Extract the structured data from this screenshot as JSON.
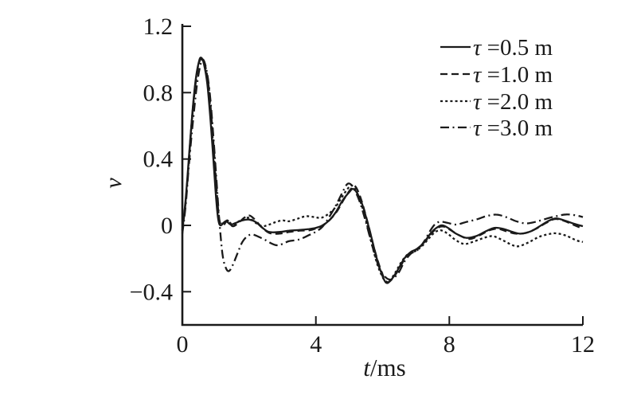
{
  "figure": {
    "background": "#ffffff",
    "line_color": "#1a1a1a"
  },
  "labels": {
    "x_var": "t",
    "x_unit": "/ms",
    "y_var": "v"
  },
  "chart_data": {
    "type": "line",
    "title": "",
    "xlabel": "t/ms",
    "ylabel": "v",
    "xlim": [
      0,
      12
    ],
    "ylim": [
      -0.6,
      1.22
    ],
    "grid": false,
    "legend_position": "top-right",
    "xticks": [
      {
        "v": 0,
        "label": "0"
      },
      {
        "v": 4,
        "label": "4"
      },
      {
        "v": 8,
        "label": "8"
      },
      {
        "v": 12,
        "label": "12"
      }
    ],
    "yticks": [
      {
        "v": -0.4,
        "label": "−0.4"
      },
      {
        "v": 0,
        "label": "0"
      },
      {
        "v": 0.4,
        "label": "0.4"
      },
      {
        "v": 0.8,
        "label": "0.8"
      },
      {
        "v": 1.2,
        "label": "1.2"
      }
    ],
    "series": [
      {
        "name": "tau-0.5m",
        "symbol": "τ",
        "label_rest": " =0.5 m",
        "style": "solid",
        "points": [
          [
            0,
            -0.03
          ],
          [
            0.1,
            0.16
          ],
          [
            0.2,
            0.42
          ],
          [
            0.3,
            0.68
          ],
          [
            0.4,
            0.88
          ],
          [
            0.5,
            0.99
          ],
          [
            0.57,
            1.01
          ],
          [
            0.65,
            0.97
          ],
          [
            0.75,
            0.85
          ],
          [
            0.85,
            0.62
          ],
          [
            0.95,
            0.34
          ],
          [
            1.02,
            0.14
          ],
          [
            1.08,
            0.03
          ],
          [
            1.15,
            0
          ],
          [
            1.3,
            0.025
          ],
          [
            1.45,
            0.005
          ],
          [
            1.6,
            0.015
          ],
          [
            1.8,
            0.03
          ],
          [
            2,
            0.035
          ],
          [
            2.2,
            0.02
          ],
          [
            2.4,
            -0.015
          ],
          [
            2.6,
            -0.04
          ],
          [
            2.9,
            -0.04
          ],
          [
            3.2,
            -0.032
          ],
          [
            3.5,
            -0.028
          ],
          [
            3.8,
            -0.022
          ],
          [
            4,
            -0.015
          ],
          [
            4.2,
            0
          ],
          [
            4.4,
            0.03
          ],
          [
            4.6,
            0.08
          ],
          [
            4.8,
            0.15
          ],
          [
            5,
            0.2
          ],
          [
            5.12,
            0.22
          ],
          [
            5.25,
            0.19
          ],
          [
            5.4,
            0.12
          ],
          [
            5.6,
            -0.02
          ],
          [
            5.8,
            -0.18
          ],
          [
            5.95,
            -0.28
          ],
          [
            6.1,
            -0.345
          ],
          [
            6.25,
            -0.33
          ],
          [
            6.45,
            -0.27
          ],
          [
            6.65,
            -0.2
          ],
          [
            6.85,
            -0.16
          ],
          [
            7.05,
            -0.14
          ],
          [
            7.25,
            -0.1
          ],
          [
            7.45,
            -0.045
          ],
          [
            7.65,
            -0.01
          ],
          [
            7.8,
            0
          ],
          [
            8,
            -0.02
          ],
          [
            8.2,
            -0.05
          ],
          [
            8.5,
            -0.075
          ],
          [
            8.8,
            -0.065
          ],
          [
            9.1,
            -0.035
          ],
          [
            9.35,
            -0.015
          ],
          [
            9.6,
            -0.02
          ],
          [
            9.9,
            -0.04
          ],
          [
            10.15,
            -0.05
          ],
          [
            10.45,
            -0.035
          ],
          [
            10.75,
            0
          ],
          [
            11,
            0.03
          ],
          [
            11.2,
            0.042
          ],
          [
            11.45,
            0.03
          ],
          [
            11.7,
            0.012
          ],
          [
            12,
            -0.005
          ]
        ]
      },
      {
        "name": "tau-1.0m",
        "symbol": "τ",
        "label_rest": " =1.0 m",
        "style": "dashed",
        "points": [
          [
            0,
            -0.03
          ],
          [
            0.1,
            0.14
          ],
          [
            0.2,
            0.4
          ],
          [
            0.3,
            0.66
          ],
          [
            0.4,
            0.86
          ],
          [
            0.5,
            0.98
          ],
          [
            0.6,
            1.005
          ],
          [
            0.7,
            0.95
          ],
          [
            0.8,
            0.82
          ],
          [
            0.9,
            0.58
          ],
          [
            1,
            0.3
          ],
          [
            1.07,
            0.1
          ],
          [
            1.14,
            0.01
          ],
          [
            1.25,
            0.005
          ],
          [
            1.35,
            0.03
          ],
          [
            1.5,
            -0.005
          ],
          [
            1.65,
            0.01
          ],
          [
            1.85,
            0.045
          ],
          [
            2,
            0.06
          ],
          [
            2.15,
            0.04
          ],
          [
            2.35,
            -0.005
          ],
          [
            2.6,
            -0.045
          ],
          [
            2.9,
            -0.05
          ],
          [
            3.2,
            -0.04
          ],
          [
            3.5,
            -0.032
          ],
          [
            3.8,
            -0.03
          ],
          [
            4.05,
            -0.015
          ],
          [
            4.25,
            0.005
          ],
          [
            4.45,
            0.04
          ],
          [
            4.65,
            0.09
          ],
          [
            4.85,
            0.16
          ],
          [
            5.05,
            0.22
          ],
          [
            5.18,
            0.235
          ],
          [
            5.35,
            0.16
          ],
          [
            5.55,
            0.02
          ],
          [
            5.75,
            -0.14
          ],
          [
            5.95,
            -0.27
          ],
          [
            6.12,
            -0.34
          ],
          [
            6.3,
            -0.32
          ],
          [
            6.5,
            -0.26
          ],
          [
            6.7,
            -0.19
          ],
          [
            6.9,
            -0.16
          ],
          [
            7.1,
            -0.13
          ],
          [
            7.3,
            -0.09
          ],
          [
            7.5,
            -0.04
          ],
          [
            7.7,
            -0.01
          ],
          [
            7.85,
            -0.008
          ],
          [
            8.05,
            -0.03
          ],
          [
            8.3,
            -0.06
          ],
          [
            8.6,
            -0.082
          ],
          [
            8.9,
            -0.06
          ],
          [
            9.2,
            -0.03
          ],
          [
            9.45,
            -0.02
          ],
          [
            9.7,
            -0.035
          ],
          [
            10,
            -0.05
          ],
          [
            10.3,
            -0.045
          ],
          [
            10.6,
            -0.02
          ],
          [
            10.9,
            0.015
          ],
          [
            11.15,
            0.038
          ],
          [
            11.4,
            0.03
          ],
          [
            11.7,
            0.005
          ],
          [
            12,
            -0.02
          ]
        ]
      },
      {
        "name": "tau-2.0m",
        "symbol": "τ",
        "label_rest": " =2.0 m",
        "style": "dotted",
        "points": [
          [
            0,
            -0.03
          ],
          [
            0.1,
            0.15
          ],
          [
            0.2,
            0.41
          ],
          [
            0.3,
            0.67
          ],
          [
            0.4,
            0.87
          ],
          [
            0.5,
            0.985
          ],
          [
            0.58,
            1
          ],
          [
            0.68,
            0.955
          ],
          [
            0.78,
            0.83
          ],
          [
            0.88,
            0.6
          ],
          [
            0.98,
            0.32
          ],
          [
            1.05,
            0.12
          ],
          [
            1.12,
            0.02
          ],
          [
            1.25,
            0.015
          ],
          [
            1.35,
            0.03
          ],
          [
            1.5,
            0.005
          ],
          [
            1.65,
            0.02
          ],
          [
            1.85,
            0.04
          ],
          [
            2,
            0.045
          ],
          [
            2.2,
            0.015
          ],
          [
            2.4,
            -0.005
          ],
          [
            2.6,
            0.005
          ],
          [
            2.8,
            0.02
          ],
          [
            3,
            0.03
          ],
          [
            3.2,
            0.025
          ],
          [
            3.45,
            0.04
          ],
          [
            3.7,
            0.055
          ],
          [
            3.95,
            0.05
          ],
          [
            4.15,
            0.045
          ],
          [
            4.35,
            0.065
          ],
          [
            4.55,
            0.1
          ],
          [
            4.75,
            0.16
          ],
          [
            4.95,
            0.22
          ],
          [
            5.08,
            0.24
          ],
          [
            5.25,
            0.19
          ],
          [
            5.45,
            0.07
          ],
          [
            5.65,
            -0.09
          ],
          [
            5.85,
            -0.24
          ],
          [
            6.05,
            -0.33
          ],
          [
            6.18,
            -0.34
          ],
          [
            6.38,
            -0.285
          ],
          [
            6.58,
            -0.215
          ],
          [
            6.78,
            -0.17
          ],
          [
            6.98,
            -0.155
          ],
          [
            7.18,
            -0.125
          ],
          [
            7.38,
            -0.08
          ],
          [
            7.58,
            -0.04
          ],
          [
            7.75,
            -0.03
          ],
          [
            7.95,
            -0.05
          ],
          [
            8.2,
            -0.09
          ],
          [
            8.45,
            -0.112
          ],
          [
            8.7,
            -0.1
          ],
          [
            9,
            -0.078
          ],
          [
            9.3,
            -0.065
          ],
          [
            9.6,
            -0.09
          ],
          [
            9.9,
            -0.12
          ],
          [
            10.1,
            -0.125
          ],
          [
            10.4,
            -0.1
          ],
          [
            10.7,
            -0.068
          ],
          [
            11,
            -0.052
          ],
          [
            11.2,
            -0.048
          ],
          [
            11.5,
            -0.062
          ],
          [
            11.8,
            -0.09
          ],
          [
            12,
            -0.1
          ]
        ]
      },
      {
        "name": "tau-3.0m",
        "symbol": "τ",
        "label_rest": " =3.0 m",
        "style": "dashdot",
        "points": [
          [
            0,
            -0.05
          ],
          [
            0.1,
            0.12
          ],
          [
            0.2,
            0.37
          ],
          [
            0.32,
            0.63
          ],
          [
            0.44,
            0.85
          ],
          [
            0.54,
            0.965
          ],
          [
            0.62,
            1
          ],
          [
            0.72,
            0.94
          ],
          [
            0.82,
            0.8
          ],
          [
            0.92,
            0.56
          ],
          [
            1.02,
            0.28
          ],
          [
            1.1,
            0.05
          ],
          [
            1.2,
            -0.17
          ],
          [
            1.3,
            -0.255
          ],
          [
            1.4,
            -0.275
          ],
          [
            1.52,
            -0.235
          ],
          [
            1.66,
            -0.165
          ],
          [
            1.8,
            -0.1
          ],
          [
            1.95,
            -0.065
          ],
          [
            2.1,
            -0.055
          ],
          [
            2.3,
            -0.07
          ],
          [
            2.5,
            -0.09
          ],
          [
            2.7,
            -0.112
          ],
          [
            2.85,
            -0.12
          ],
          [
            3,
            -0.112
          ],
          [
            3.2,
            -0.095
          ],
          [
            3.5,
            -0.085
          ],
          [
            3.8,
            -0.058
          ],
          [
            4,
            -0.038
          ],
          [
            4.2,
            -0.008
          ],
          [
            4.4,
            0.05
          ],
          [
            4.6,
            0.12
          ],
          [
            4.8,
            0.2
          ],
          [
            4.95,
            0.25
          ],
          [
            5.1,
            0.235
          ],
          [
            5.3,
            0.15
          ],
          [
            5.5,
            0.02
          ],
          [
            5.7,
            -0.13
          ],
          [
            5.9,
            -0.255
          ],
          [
            6.1,
            -0.315
          ],
          [
            6.28,
            -0.325
          ],
          [
            6.48,
            -0.285
          ],
          [
            6.65,
            -0.22
          ],
          [
            6.85,
            -0.17
          ],
          [
            7.05,
            -0.148
          ],
          [
            7.25,
            -0.095
          ],
          [
            7.45,
            -0.025
          ],
          [
            7.6,
            0.012
          ],
          [
            7.75,
            0.022
          ],
          [
            7.95,
            0.015
          ],
          [
            8.2,
            0.005
          ],
          [
            8.5,
            0.02
          ],
          [
            8.8,
            0.035
          ],
          [
            9.1,
            0.055
          ],
          [
            9.4,
            0.065
          ],
          [
            9.7,
            0.05
          ],
          [
            10,
            0.025
          ],
          [
            10.3,
            0.012
          ],
          [
            10.6,
            0.022
          ],
          [
            10.9,
            0.04
          ],
          [
            11.2,
            0.055
          ],
          [
            11.5,
            0.066
          ],
          [
            11.8,
            0.06
          ],
          [
            12,
            0.05
          ]
        ]
      }
    ]
  }
}
